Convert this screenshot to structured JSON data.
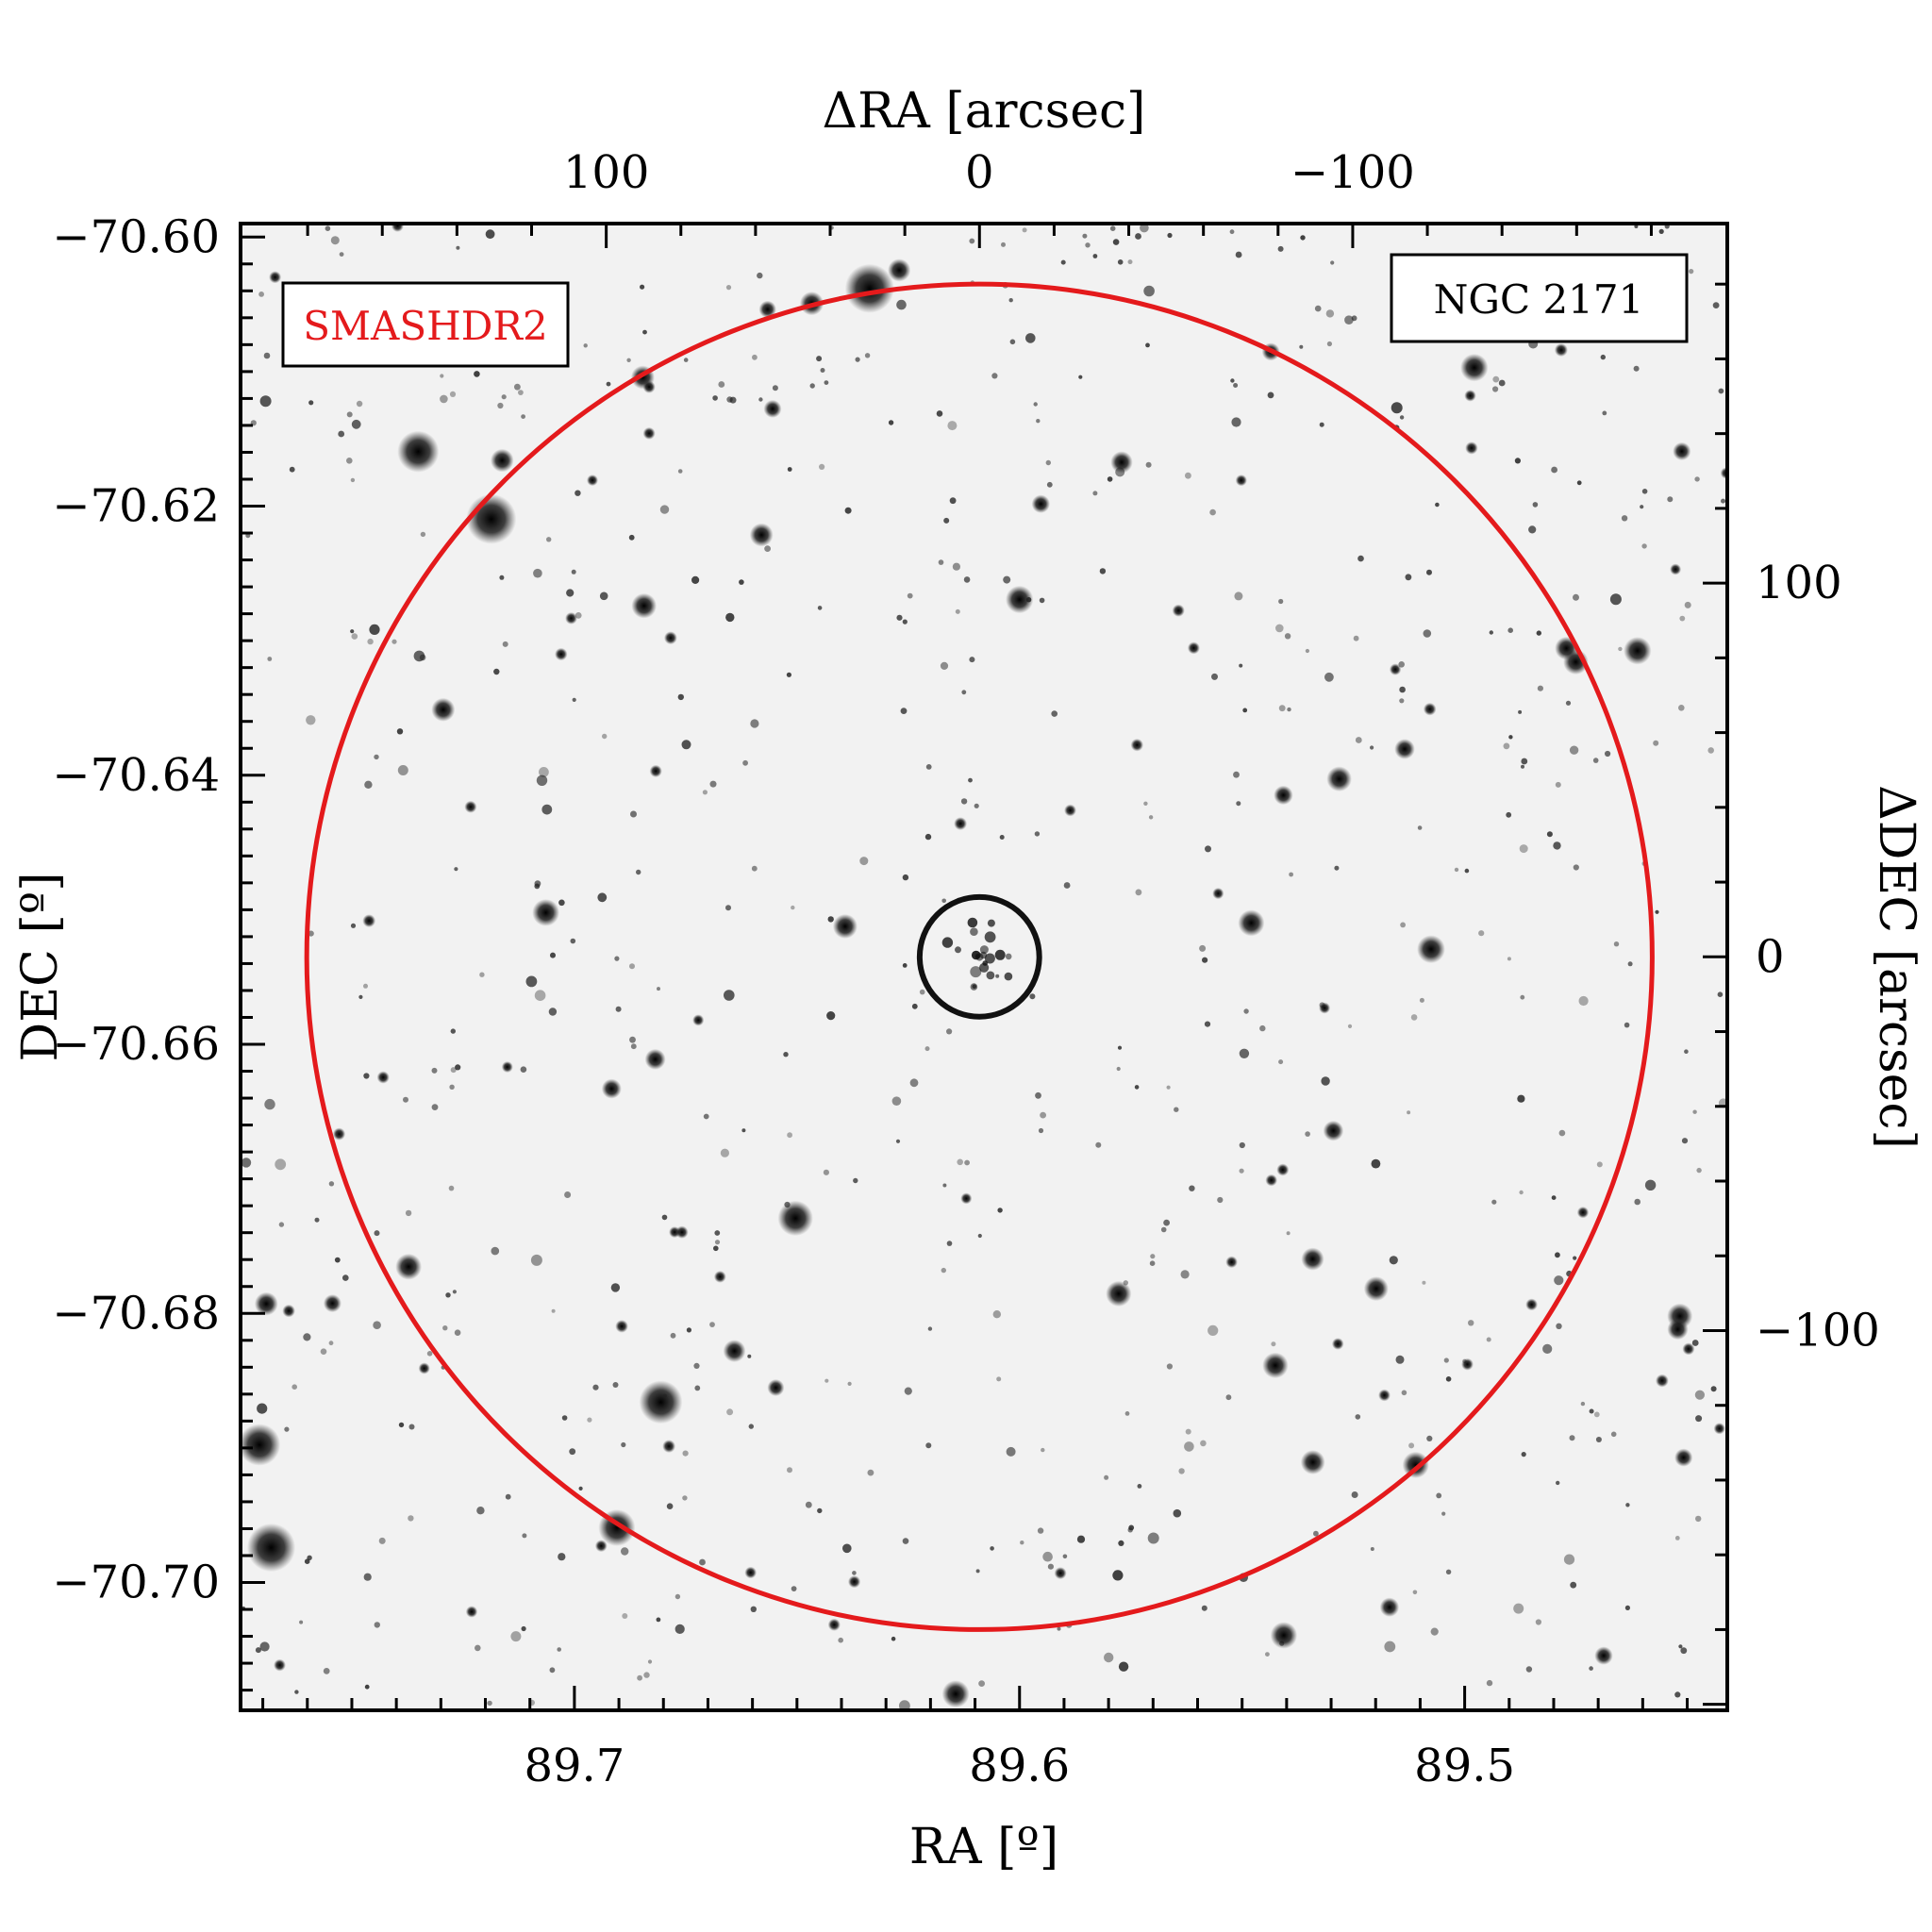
{
  "figure": {
    "labels": {
      "top_axis": "ΔRA [arcsec]",
      "bottom_axis": "RA [º]",
      "left_axis": "DEC [º]",
      "right_axis": "ΔDEC [arcsec]",
      "survey": "SMASHDR2",
      "object": "NGC 2171"
    },
    "colors": {
      "background": "#f2f2f2",
      "star": "#0a0a0a",
      "outer_circle": "#e41a1c",
      "inner_circle": "#111111",
      "survey_text": "#e41a1c"
    },
    "chart_data": {
      "type": "scatter",
      "x_range": [
        89.775,
        89.441
      ],
      "y_range": [
        -70.7095,
        -70.599
      ],
      "bottom_ticks": [
        "89.7",
        "89.6",
        "89.5"
      ],
      "left_ticks": [
        "−70.60",
        "−70.62",
        "−70.64",
        "−70.66",
        "−70.68",
        "−70.70"
      ],
      "top_ticks": [
        "100",
        "0",
        "−100"
      ],
      "right_ticks": [
        "100",
        "0",
        "−100"
      ],
      "bottom_tick_values": [
        89.7,
        89.6,
        89.5
      ],
      "left_tick_values": [
        -70.6,
        -70.62,
        -70.64,
        -70.66,
        -70.68,
        -70.7
      ],
      "top_tick_values": [
        100,
        0,
        -100
      ],
      "right_tick_values": [
        100,
        0,
        -100
      ],
      "center_ra": 89.609,
      "center_dec": -70.6535,
      "outer_radius_arcsec": 180,
      "inner_radius_arcsec": 16
    }
  }
}
